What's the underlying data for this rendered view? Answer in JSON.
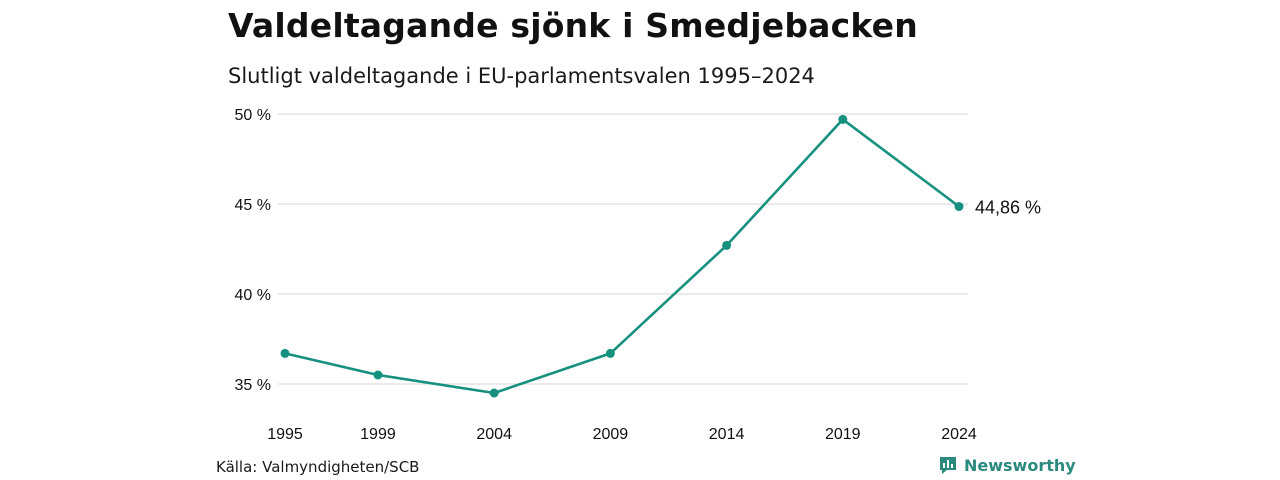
{
  "title": "Valdeltagande sjönk i Smedjebacken",
  "subtitle": "Slutligt valdeltagande i EU-parlamentsvalen 1995–2024",
  "source": "Källa: Valmyndigheten/SCB",
  "brand": {
    "name": "Newsworthy",
    "icon": "bar-chart-icon",
    "color": "#2b8a7e"
  },
  "chart_data": {
    "type": "line",
    "x": [
      "1995",
      "1999",
      "2004",
      "2009",
      "2014",
      "2019",
      "2024"
    ],
    "y": [
      36.7,
      35.5,
      34.5,
      36.7,
      42.7,
      49.7,
      44.86
    ],
    "ylim": [
      35,
      50
    ],
    "y_ticks": [
      "35 %",
      "40 %",
      "45 %",
      "50 %"
    ],
    "y_tick_values": [
      35,
      40,
      45,
      50
    ],
    "last_value_label": "44,86 %",
    "line_color": "#16907f",
    "grid": true,
    "legend": "none"
  }
}
